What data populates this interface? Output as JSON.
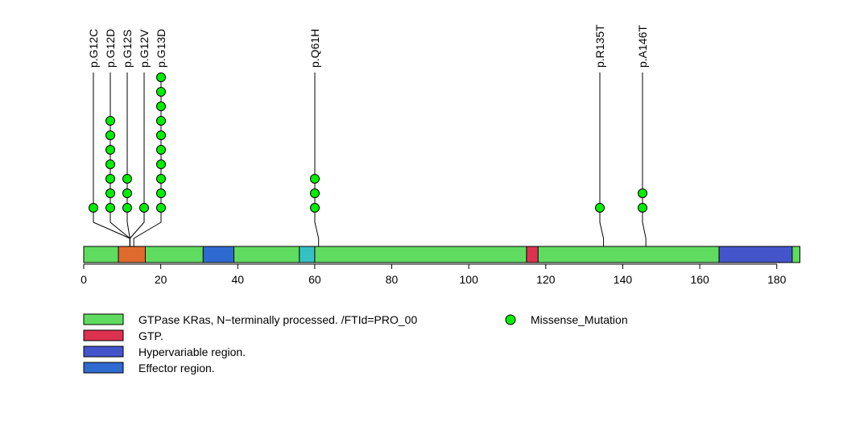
{
  "chart_data": {
    "type": "lollipop",
    "x_ticks": [
      0,
      20,
      40,
      60,
      80,
      100,
      120,
      140,
      160,
      180
    ],
    "xlim": [
      0,
      186
    ],
    "protein_length": 186,
    "backbone_color": "#5fdc5f",
    "domains": [
      {
        "start": 9,
        "end": 16,
        "color": "#e06b2e"
      },
      {
        "start": 31,
        "end": 39,
        "color": "#2f6ad1"
      },
      {
        "start": 56,
        "end": 60,
        "color": "#37c0c4"
      },
      {
        "start": 115,
        "end": 118,
        "color": "#dc3250"
      },
      {
        "start": 165,
        "end": 184,
        "color": "#4455cc"
      }
    ],
    "mutations": [
      {
        "label": "p.G12C",
        "position": 12,
        "count": 1
      },
      {
        "label": "p.G12D",
        "position": 12,
        "count": 7
      },
      {
        "label": "p.G12S",
        "position": 12,
        "count": 3
      },
      {
        "label": "p.G12V",
        "position": 12,
        "count": 1
      },
      {
        "label": "p.G13D",
        "position": 13,
        "count": 10
      },
      {
        "label": "p.Q61H",
        "position": 61,
        "count": 3
      },
      {
        "label": "p.R135T",
        "position": 135,
        "count": 1
      },
      {
        "label": "p.A146T",
        "position": 146,
        "count": 2
      }
    ],
    "point_color": "#00ee00",
    "legend": [
      {
        "label": "GTPase KRas, N−terminally processed. /FTId=PRO_00",
        "color": "#5fdc5f"
      },
      {
        "label": "GTP.",
        "color": "#dc3250"
      },
      {
        "label": "Hypervariable region.",
        "color": "#4455cc"
      },
      {
        "label": "Effector region.",
        "color": "#2f6ad1"
      }
    ],
    "legend_points": [
      {
        "label": "Missense_Mutation",
        "color": "#00ee00"
      }
    ]
  }
}
